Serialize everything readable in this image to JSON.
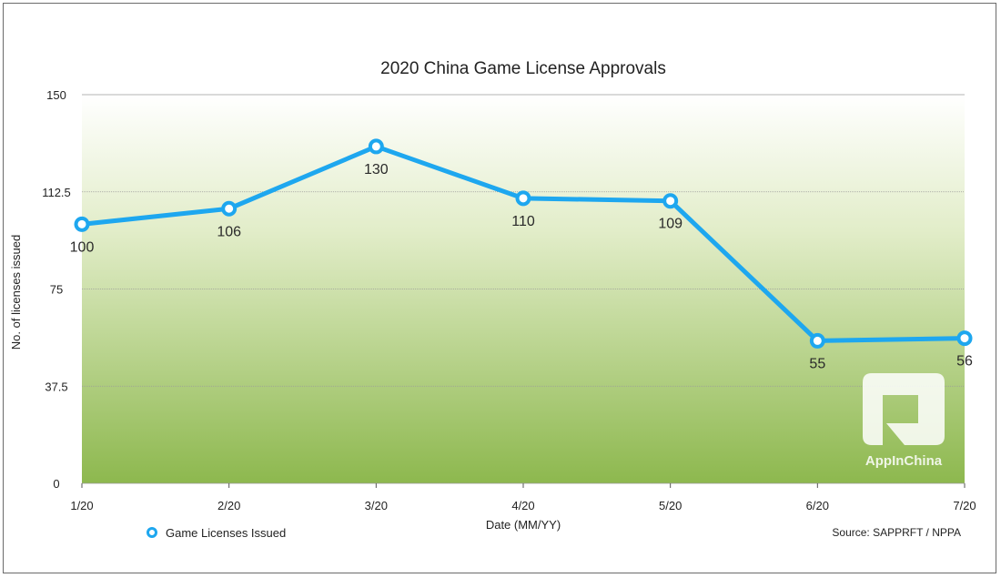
{
  "chart_data": {
    "type": "line",
    "title": "2020 China Game License Approvals",
    "xlabel": "Date (MM/YY)",
    "ylabel": "No. of licenses issued",
    "categories": [
      "1/20",
      "2/20",
      "3/20",
      "4/20",
      "5/20",
      "6/20",
      "7/20"
    ],
    "series": [
      {
        "name": "Game Licenses Issued",
        "values": [
          100,
          106,
          130,
          110,
          109,
          55,
          56
        ],
        "color": "#1ea7ef"
      }
    ],
    "ylim": [
      0,
      150
    ],
    "yticks": [
      "0",
      "37.5",
      "75",
      "112.5",
      "150"
    ],
    "data_labels": [
      "100",
      "106",
      "130",
      "110",
      "109",
      "55",
      "56"
    ],
    "grid": true,
    "legend_position": "bottom-left",
    "source": "Source: SAPPRFT / NPPA",
    "watermark": "AppInChina",
    "colors": {
      "line": "#1ea7ef",
      "fill_top": "#ffffff",
      "fill_bottom": "#8db84e",
      "grid": "#9a9a9a"
    }
  }
}
